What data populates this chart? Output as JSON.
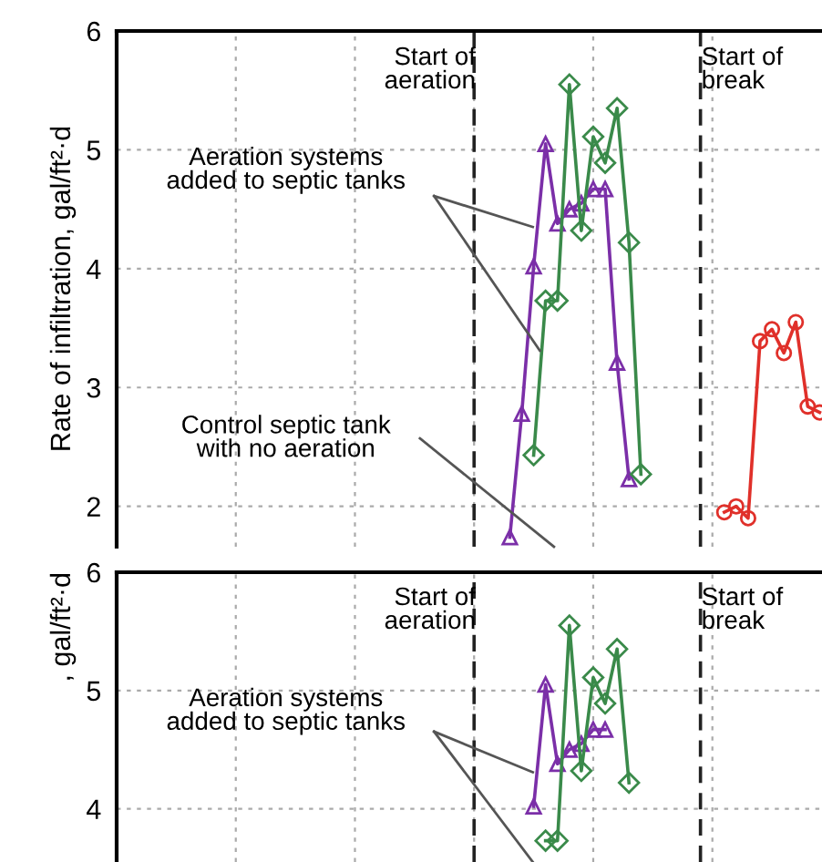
{
  "chart_data": [
    {
      "type": "line",
      "ylabel": "Rate of infiltration, gal/ft²·d",
      "ylim": [
        1.66,
        6
      ],
      "yticks": [
        2,
        3,
        4,
        5,
        6
      ],
      "grid": true,
      "categories": [
        null,
        null,
        null,
        null,
        null,
        null,
        null,
        null,
        null,
        null,
        null,
        null,
        null,
        null,
        null,
        null,
        null,
        null,
        null,
        null,
        null,
        null,
        null,
        null,
        null,
        null,
        null,
        null,
        null,
        null,
        null,
        null,
        null,
        null,
        null,
        null,
        null,
        null,
        null,
        null,
        null,
        null,
        null,
        null,
        null,
        null,
        null,
        null,
        null,
        null,
        null,
        null,
        null,
        null,
        null,
        null,
        null,
        null,
        null,
        null
      ],
      "series": [
        {
          "color": "#7b2fa8",
          "marker": "triangle",
          "values": [
            null,
            null,
            null,
            null,
            null,
            null,
            null,
            null,
            null,
            null,
            null,
            null,
            null,
            null,
            null,
            null,
            null,
            null,
            null,
            null,
            null,
            null,
            null,
            null,
            null,
            null,
            null,
            null,
            null,
            null,
            null,
            null,
            null,
            1.74,
            2.78,
            4.02,
            5.05,
            4.38,
            4.5,
            4.55,
            4.67,
            4.67,
            3.21,
            2.23,
            null,
            null,
            null,
            null,
            null,
            null,
            null,
            null,
            null,
            null,
            null,
            null,
            null,
            null,
            null,
            null
          ]
        },
        {
          "color": "#3a8a4a",
          "marker": "diamond",
          "values": [
            null,
            null,
            null,
            null,
            null,
            null,
            null,
            null,
            null,
            null,
            null,
            null,
            null,
            null,
            null,
            null,
            null,
            null,
            null,
            null,
            null,
            null,
            null,
            null,
            null,
            null,
            null,
            null,
            null,
            null,
            null,
            null,
            null,
            null,
            null,
            2.43,
            3.73,
            3.73,
            5.55,
            4.32,
            5.11,
            4.89,
            5.35,
            4.22,
            2.27,
            null,
            null,
            null,
            null,
            null,
            null,
            null,
            null,
            null,
            null,
            null,
            null,
            null,
            null,
            null
          ]
        },
        {
          "color": "#e0302a",
          "marker": "circle",
          "values": [
            null,
            null,
            null,
            null,
            null,
            null,
            null,
            null,
            null,
            null,
            null,
            null,
            null,
            null,
            null,
            null,
            null,
            null,
            null,
            null,
            null,
            null,
            null,
            null,
            null,
            null,
            null,
            null,
            null,
            null,
            null,
            null,
            null,
            null,
            null,
            null,
            null,
            null,
            null,
            null,
            null,
            null,
            null,
            null,
            null,
            null,
            null,
            null,
            null,
            null,
            null,
            1.95,
            2.0,
            1.9,
            3.39,
            3.49,
            3.29,
            3.55,
            2.84,
            2.79
          ]
        }
      ],
      "annotations": [
        "Start of\naeration",
        "Start of\nbreak",
        "Aeration systems\nadded to septic tanks",
        "Control septic tank\nwith no aeration"
      ]
    },
    {
      "type": "line",
      "ylabel": ", gal/ft²·d",
      "ylim": [
        3.55,
        6
      ],
      "yticks": [
        4,
        5,
        6
      ],
      "grid": true,
      "categories": [
        null,
        null,
        null,
        null,
        null,
        null,
        null,
        null,
        null,
        null,
        null,
        null,
        null,
        null,
        null,
        null,
        null,
        null,
        null,
        null,
        null,
        null,
        null,
        null,
        null,
        null,
        null,
        null,
        null,
        null,
        null,
        null,
        null,
        null,
        null,
        null,
        null,
        null,
        null,
        null,
        null,
        null,
        null,
        null,
        null,
        null,
        null,
        null,
        null,
        null,
        null,
        null,
        null,
        null,
        null,
        null,
        null,
        null,
        null,
        null
      ],
      "series": [
        {
          "color": "#7b2fa8",
          "marker": "triangle",
          "values": [
            null,
            null,
            null,
            null,
            null,
            null,
            null,
            null,
            null,
            null,
            null,
            null,
            null,
            null,
            null,
            null,
            null,
            null,
            null,
            null,
            null,
            null,
            null,
            null,
            null,
            null,
            null,
            null,
            null,
            null,
            null,
            null,
            null,
            null,
            null,
            4.02,
            5.05,
            4.38,
            4.5,
            4.55,
            4.67,
            4.67,
            null,
            null,
            null,
            null,
            null,
            null,
            null,
            null,
            null,
            null,
            null,
            null,
            null,
            null,
            null,
            null,
            null,
            null
          ]
        },
        {
          "color": "#3a8a4a",
          "marker": "diamond",
          "values": [
            null,
            null,
            null,
            null,
            null,
            null,
            null,
            null,
            null,
            null,
            null,
            null,
            null,
            null,
            null,
            null,
            null,
            null,
            null,
            null,
            null,
            null,
            null,
            null,
            null,
            null,
            null,
            null,
            null,
            null,
            null,
            null,
            null,
            null,
            null,
            null,
            3.73,
            3.73,
            5.55,
            4.32,
            5.11,
            4.89,
            5.35,
            4.22,
            null,
            null,
            null,
            null,
            null,
            null,
            null,
            null,
            null,
            null,
            null,
            null,
            null,
            null,
            null,
            null
          ]
        }
      ],
      "annotations": [
        "Start of\naeration",
        "Start of\nbreak",
        "Aeration systems\nadded to septic tanks"
      ]
    }
  ]
}
